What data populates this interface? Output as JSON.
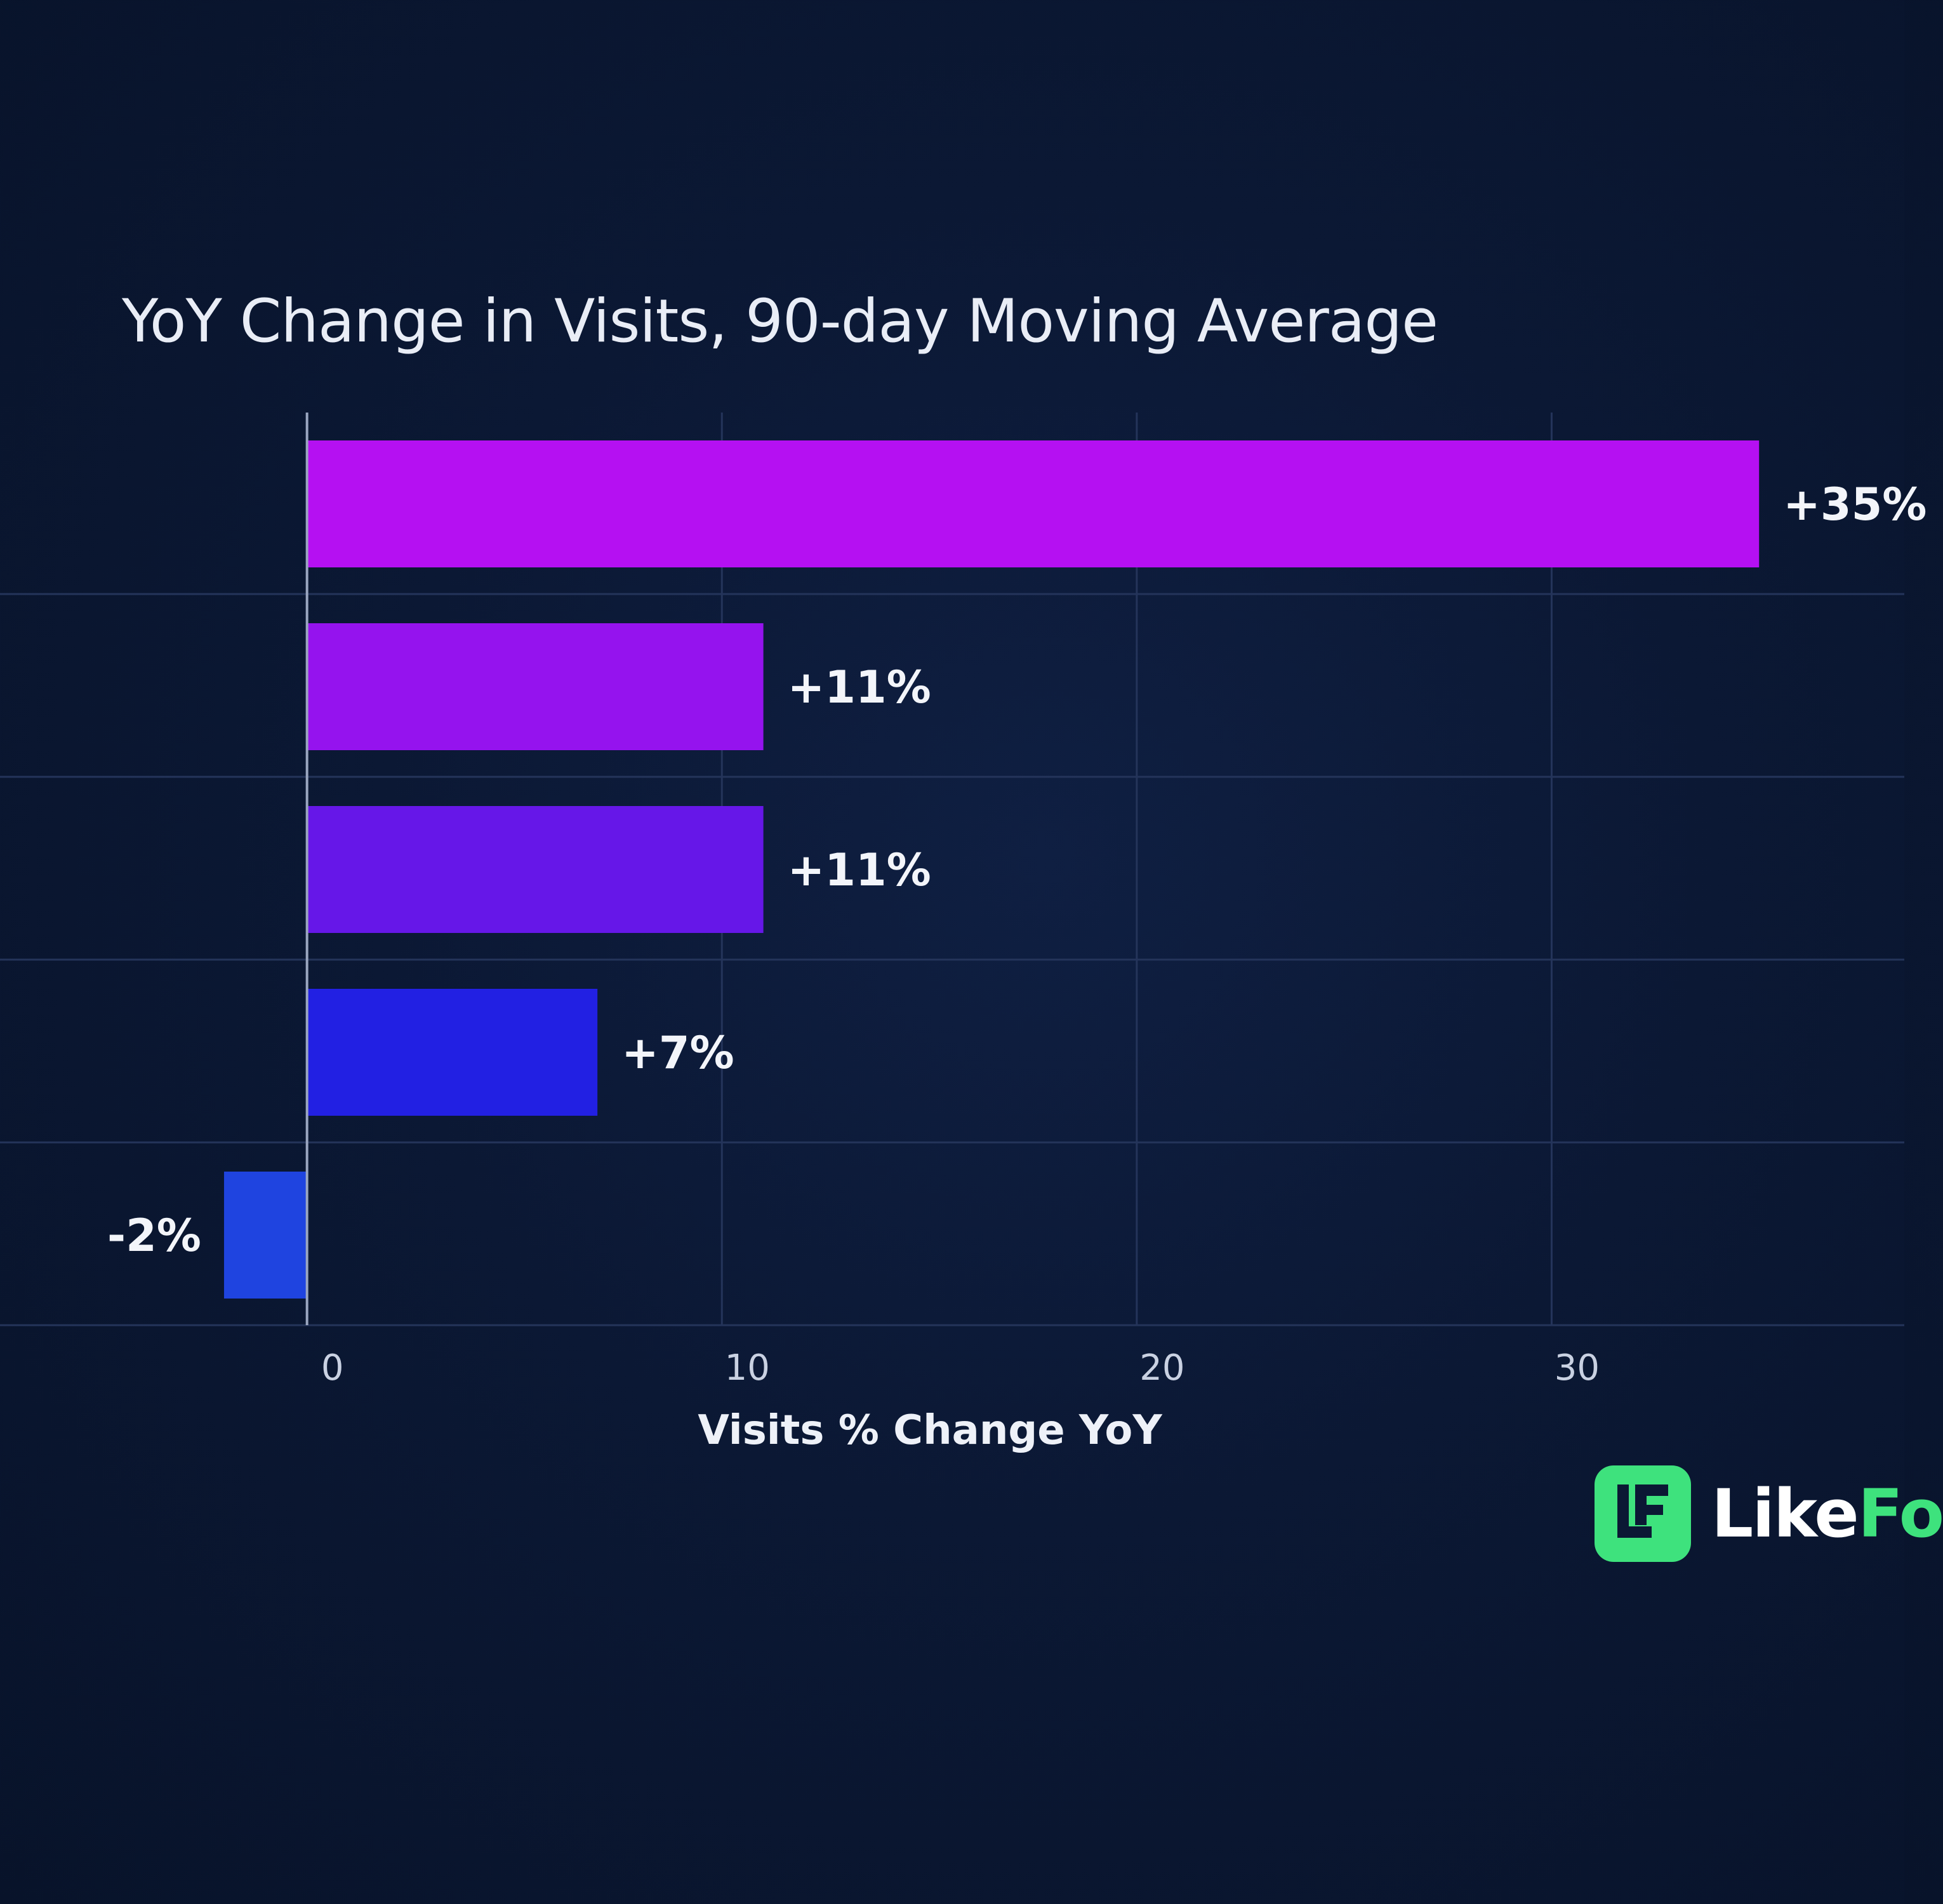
{
  "chart_data": {
    "type": "bar",
    "orientation": "horizontal",
    "title": "YoY Change in Visits, 90-day Moving Average",
    "xlabel": "Visits % Change YoY",
    "ylabel": "",
    "xlim": [
      -7.4,
      38.5
    ],
    "xticks": [
      0,
      10,
      20,
      30
    ],
    "grid": true,
    "values": [
      35,
      11,
      11,
      7,
      -2
    ],
    "value_labels": [
      "+35%",
      "+11%",
      "+11%",
      "+7%",
      "-2%"
    ],
    "colors": [
      "#b510f2",
      "#9513ee",
      "#6617e8",
      "#2220e3",
      "#1f44e0"
    ]
  },
  "logo": {
    "text_primary": "Like",
    "text_secondary": "Fo",
    "brand_color": "#3ee27d"
  }
}
